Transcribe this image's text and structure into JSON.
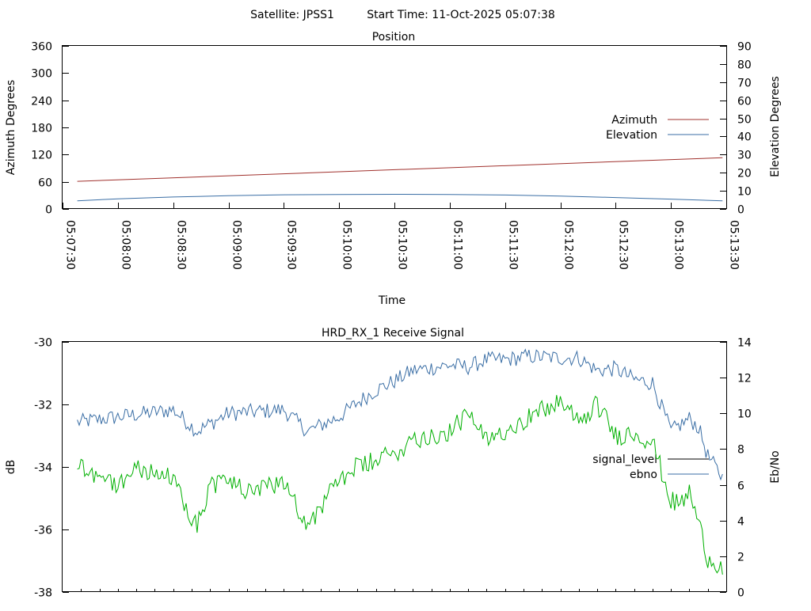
{
  "header": {
    "satellite_label": "Satellite: JPSS1",
    "start_label": "Start Time: 11-Oct-2025 05:07:38"
  },
  "chart_data": [
    {
      "type": "line",
      "title": "Position",
      "xlabel": "Time",
      "ylabel": "Azimuth Degrees",
      "y2label": "Elevation Degrees",
      "x_ticks": [
        "05:07:30",
        "05:08:00",
        "05:08:30",
        "05:09:00",
        "05:09:30",
        "05:10:00",
        "05:10:30",
        "05:11:00",
        "05:11:30",
        "05:12:00",
        "05:12:30",
        "05:13:00",
        "05:13:30"
      ],
      "xlim_sec": [
        0,
        360
      ],
      "ylim": [
        0,
        360
      ],
      "y_ticks": [
        0,
        60,
        120,
        180,
        240,
        300,
        360
      ],
      "y2lim": [
        0,
        90
      ],
      "y2_ticks": [
        0,
        10,
        20,
        30,
        40,
        50,
        60,
        70,
        80,
        90
      ],
      "grid": false,
      "legend_position": "right",
      "series": [
        {
          "name": "Azimuth",
          "axis": "y",
          "color": "#a0302c",
          "points": [
            [
              "05:07:38",
              61
            ],
            [
              "05:13:28",
              113
            ]
          ]
        },
        {
          "name": "Elevation",
          "axis": "y2",
          "color": "#3a6ea5",
          "points": [
            [
              "05:07:38",
              4.5
            ],
            [
              "05:08:00",
              5.6
            ],
            [
              "05:08:30",
              6.6
            ],
            [
              "05:09:00",
              7.3
            ],
            [
              "05:09:30",
              7.8
            ],
            [
              "05:10:00",
              8.0
            ],
            [
              "05:10:30",
              8.1
            ],
            [
              "05:11:00",
              8.0
            ],
            [
              "05:11:30",
              7.7
            ],
            [
              "05:12:00",
              7.1
            ],
            [
              "05:12:30",
              6.3
            ],
            [
              "05:13:00",
              5.4
            ],
            [
              "05:13:28",
              4.5
            ]
          ]
        }
      ]
    },
    {
      "type": "line",
      "title": "HRD_RX_1 Receive Signal",
      "ylabel": "dB",
      "y2label": "Eb/No",
      "xlim_sec": [
        0,
        360
      ],
      "ylim": [
        -38,
        -30
      ],
      "y_ticks": [
        -38,
        -36,
        -34,
        -32,
        -30
      ],
      "y2lim": [
        0,
        14
      ],
      "y2_ticks": [
        0,
        2,
        4,
        6,
        8,
        10,
        12,
        14
      ],
      "x_minor_ticks_every_sec": 10,
      "grid": false,
      "legend_position": "right",
      "series": [
        {
          "name": "signal_level",
          "axis": "y",
          "color": "#00b000",
          "legend_color": "#000000",
          "keypoints": [
            [
              "05:07:38",
              -33.9
            ],
            [
              "05:08:00",
              -34.6
            ],
            [
              "05:08:10",
              -34.0
            ],
            [
              "05:08:30",
              -34.4
            ],
            [
              "05:08:43",
              -35.9
            ],
            [
              "05:08:50",
              -34.6
            ],
            [
              "05:09:00",
              -34.4
            ],
            [
              "05:09:13",
              -34.9
            ],
            [
              "05:09:30",
              -34.4
            ],
            [
              "05:09:43",
              -35.9
            ],
            [
              "05:09:50",
              -35.3
            ],
            [
              "05:10:00",
              -34.4
            ],
            [
              "05:10:10",
              -34.0
            ],
            [
              "05:10:20",
              -33.8
            ],
            [
              "05:10:30",
              -33.6
            ],
            [
              "05:10:40",
              -33.1
            ],
            [
              "05:11:00",
              -32.9
            ],
            [
              "05:11:10",
              -32.3
            ],
            [
              "05:11:20",
              -33.2
            ],
            [
              "05:11:30",
              -32.8
            ],
            [
              "05:11:43",
              -32.4
            ],
            [
              "05:12:00",
              -31.9
            ],
            [
              "05:12:10",
              -32.6
            ],
            [
              "05:12:20",
              -32.0
            ],
            [
              "05:12:30",
              -33.0
            ],
            [
              "05:12:40",
              -32.9
            ],
            [
              "05:12:50",
              -33.2
            ],
            [
              "05:13:00",
              -35.1
            ],
            [
              "05:13:05",
              -35.2
            ],
            [
              "05:13:10",
              -34.8
            ],
            [
              "05:13:15",
              -35.8
            ],
            [
              "05:13:20",
              -36.9
            ],
            [
              "05:13:28",
              -37.2
            ]
          ]
        },
        {
          "name": "ebno",
          "axis": "y2",
          "color": "#3a6ea5",
          "keypoints": [
            [
              "05:07:38",
              9.5
            ],
            [
              "05:08:00",
              9.8
            ],
            [
              "05:08:30",
              10.2
            ],
            [
              "05:08:43",
              9.0
            ],
            [
              "05:09:00",
              10.0
            ],
            [
              "05:09:30",
              10.2
            ],
            [
              "05:09:43",
              9.0
            ],
            [
              "05:10:00",
              9.8
            ],
            [
              "05:10:10",
              10.6
            ],
            [
              "05:10:20",
              11.3
            ],
            [
              "05:10:30",
              11.8
            ],
            [
              "05:10:40",
              12.4
            ],
            [
              "05:11:00",
              12.7
            ],
            [
              "05:11:10",
              12.6
            ],
            [
              "05:11:20",
              13.0
            ],
            [
              "05:11:30",
              13.0
            ],
            [
              "05:11:43",
              13.2
            ],
            [
              "05:12:00",
              13.1
            ],
            [
              "05:12:10",
              13.1
            ],
            [
              "05:12:20",
              12.4
            ],
            [
              "05:12:30",
              12.5
            ],
            [
              "05:12:40",
              11.9
            ],
            [
              "05:12:50",
              11.7
            ],
            [
              "05:13:00",
              9.0
            ],
            [
              "05:13:10",
              9.7
            ],
            [
              "05:13:15",
              9.2
            ],
            [
              "05:13:20",
              7.6
            ],
            [
              "05:13:28",
              6.4
            ]
          ]
        }
      ]
    }
  ]
}
